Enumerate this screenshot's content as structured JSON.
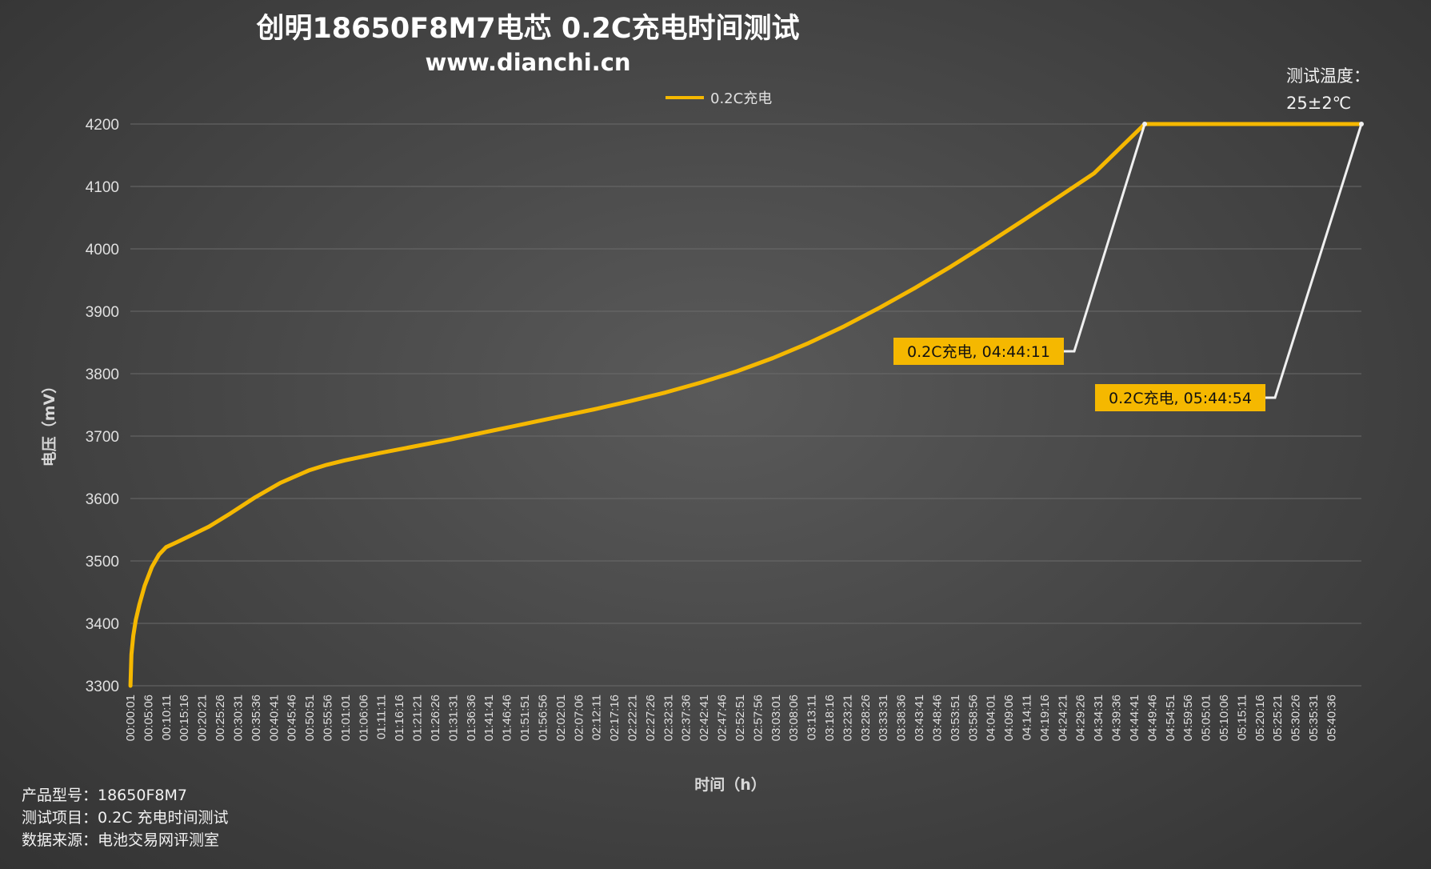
{
  "colors": {
    "series": "#f5b800",
    "leader": "#f0f0f0",
    "grid": "#6a6a6a"
  },
  "footer": {
    "model": "产品型号：18650F8M7",
    "item": "测试项目：0.2C 充电时间测试",
    "source": "数据来源：电池交易网评测室"
  },
  "chart_data": {
    "type": "line",
    "title": "创明18650F8M7电芯 0.2C充电时间测试",
    "subtitle": "www.dianchi.cn",
    "xlabel": "时间（h）",
    "ylabel": "电压（mV）",
    "ylim": [
      3300,
      4200
    ],
    "yticks": [
      3300,
      3400,
      3500,
      3600,
      3700,
      3800,
      3900,
      4000,
      4100,
      4200
    ],
    "grid": true,
    "legend_position": "top-center",
    "note_lines": [
      "测试温度：",
      "25±2℃"
    ],
    "x_ticks": [
      "00:00:01",
      "00:05:06",
      "00:10:11",
      "00:15:16",
      "00:20:21",
      "00:25:26",
      "00:30:31",
      "00:35:36",
      "00:40:41",
      "00:45:46",
      "00:50:51",
      "00:55:56",
      "01:01:01",
      "01:06:06",
      "01:11:11",
      "01:16:16",
      "01:21:21",
      "01:26:26",
      "01:31:31",
      "01:36:36",
      "01:41:41",
      "01:46:46",
      "01:51:51",
      "01:56:56",
      "02:02:01",
      "02:07:06",
      "02:12:11",
      "02:17:16",
      "02:22:21",
      "02:27:26",
      "02:32:31",
      "02:37:36",
      "02:42:41",
      "02:47:46",
      "02:52:51",
      "02:57:56",
      "03:03:01",
      "03:08:06",
      "03:13:11",
      "03:18:16",
      "03:23:21",
      "03:28:26",
      "03:33:31",
      "03:38:36",
      "03:43:41",
      "03:48:46",
      "03:53:51",
      "03:58:56",
      "04:04:01",
      "04:09:06",
      "04:14:11",
      "04:19:16",
      "04:24:21",
      "04:29:26",
      "04:34:31",
      "04:39:36",
      "04:44:41",
      "04:49:46",
      "04:54:51",
      "04:59:56",
      "05:05:01",
      "05:10:06",
      "05:15:11",
      "05:20:16",
      "05:25:21",
      "05:30:26",
      "05:35:31",
      "05:40:36"
    ],
    "x_max_minutes": 344.9,
    "series": [
      {
        "name": "0.2C充电",
        "x_minutes": [
          0.02,
          0.3,
          0.8,
          1.5,
          2.5,
          4,
          6,
          8,
          10,
          13,
          17,
          22,
          28,
          35,
          42,
          50,
          55,
          60,
          70,
          80,
          90,
          100,
          110,
          120,
          130,
          140,
          150,
          160,
          170,
          180,
          190,
          200,
          210,
          220,
          230,
          240,
          250,
          260,
          270,
          284.18,
          344.9
        ],
        "y_mv": [
          3300,
          3350,
          3380,
          3405,
          3430,
          3460,
          3490,
          3510,
          3522,
          3530,
          3541,
          3555,
          3576,
          3602,
          3625,
          3645,
          3654,
          3661,
          3673,
          3684,
          3695,
          3707,
          3719,
          3731,
          3743,
          3756,
          3770,
          3786,
          3804,
          3825,
          3849,
          3876,
          3906,
          3938,
          3972,
          4008,
          4045,
          4083,
          4121,
          4200,
          4200
        ]
      }
    ],
    "annotations": [
      {
        "text": "0.2C充电, 04:44:11",
        "x_minutes": 284.18,
        "y_mv": 4200
      },
      {
        "text": "0.2C充电, 05:44:54",
        "x_minutes": 344.9,
        "y_mv": 4200
      }
    ]
  }
}
